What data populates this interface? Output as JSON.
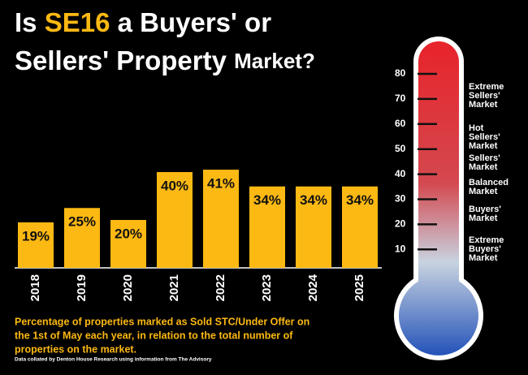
{
  "chart_data": {
    "type": "bar",
    "title": [
      "Is ",
      "SE16",
      " a Buyers' or",
      "Sellers' Property ",
      "Market?"
    ],
    "categories": [
      "2018",
      "2019",
      "2020",
      "2021",
      "2022",
      "2023",
      "2024",
      "2025"
    ],
    "values": [
      19,
      25,
      20,
      40,
      41,
      34,
      34,
      34
    ],
    "value_labels": [
      "19%",
      "25%",
      "20%",
      "40%",
      "41%",
      "34%",
      "34%",
      "34%"
    ],
    "color": "#fdb913",
    "caption": [
      "Percentage of properties marked as Sold STC/Under Offer on",
      "the 1st of May each year, in relation to the total number of",
      "properties on the market."
    ],
    "source": "Data collated by Denton House Research using information from The Advisory",
    "thermometer": {
      "ticks": [
        80,
        70,
        60,
        50,
        40,
        30,
        20,
        10
      ],
      "zones": [
        [
          "Extreme",
          "Sellers'",
          "Market"
        ],
        [
          "Hot",
          "Sellers'",
          "Market"
        ],
        [
          "Sellers'",
          "Market"
        ],
        [
          "Balanced",
          "Market"
        ],
        [
          "Buyers'",
          "Market"
        ],
        [
          "Extreme",
          "Buyers'",
          "Market"
        ]
      ]
    }
  }
}
